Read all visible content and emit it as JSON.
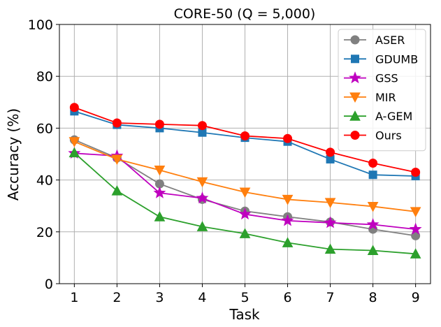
{
  "chart_data": {
    "type": "line",
    "title": "CORE-50 (Q = 5,000)",
    "xlabel": "Task",
    "ylabel": "Accuracy (%)",
    "x": [
      1,
      2,
      3,
      4,
      5,
      6,
      7,
      8,
      9
    ],
    "xticks": [
      "1",
      "2",
      "3",
      "4",
      "5",
      "6",
      "7",
      "8",
      "9"
    ],
    "yticks": [
      "0",
      "20",
      "40",
      "60",
      "80",
      "100"
    ],
    "ylim": [
      0,
      100
    ],
    "grid": true,
    "legend_position": "top-right",
    "series": [
      {
        "name": "ASER",
        "color": "#808080",
        "marker": "circle",
        "values": [
          55.5,
          48.5,
          38.5,
          32.5,
          28.0,
          25.8,
          23.8,
          21.0,
          18.5
        ]
      },
      {
        "name": "GDUMB",
        "color": "#1f77b4",
        "marker": "square",
        "values": [
          66.5,
          61.3,
          60.0,
          58.3,
          56.3,
          54.8,
          48.0,
          42.0,
          41.5
        ]
      },
      {
        "name": "GSS",
        "color": "#bf00bf",
        "marker": "star",
        "values": [
          50.3,
          49.3,
          35.0,
          33.0,
          26.8,
          24.3,
          23.5,
          22.8,
          21.0
        ]
      },
      {
        "name": "MIR",
        "color": "#ff7f0e",
        "marker": "triangle-down",
        "values": [
          54.8,
          48.0,
          43.8,
          39.3,
          35.3,
          32.5,
          31.3,
          29.8,
          27.8
        ]
      },
      {
        "name": "A-GEM",
        "color": "#2ca02c",
        "marker": "triangle-up",
        "values": [
          50.5,
          35.8,
          25.8,
          22.0,
          19.3,
          15.8,
          13.3,
          12.8,
          11.5
        ]
      },
      {
        "name": "Ours",
        "color": "#ff0000",
        "marker": "circle",
        "values": [
          68.0,
          62.0,
          61.5,
          61.0,
          57.0,
          56.0,
          50.7,
          46.5,
          43.0
        ]
      }
    ]
  }
}
